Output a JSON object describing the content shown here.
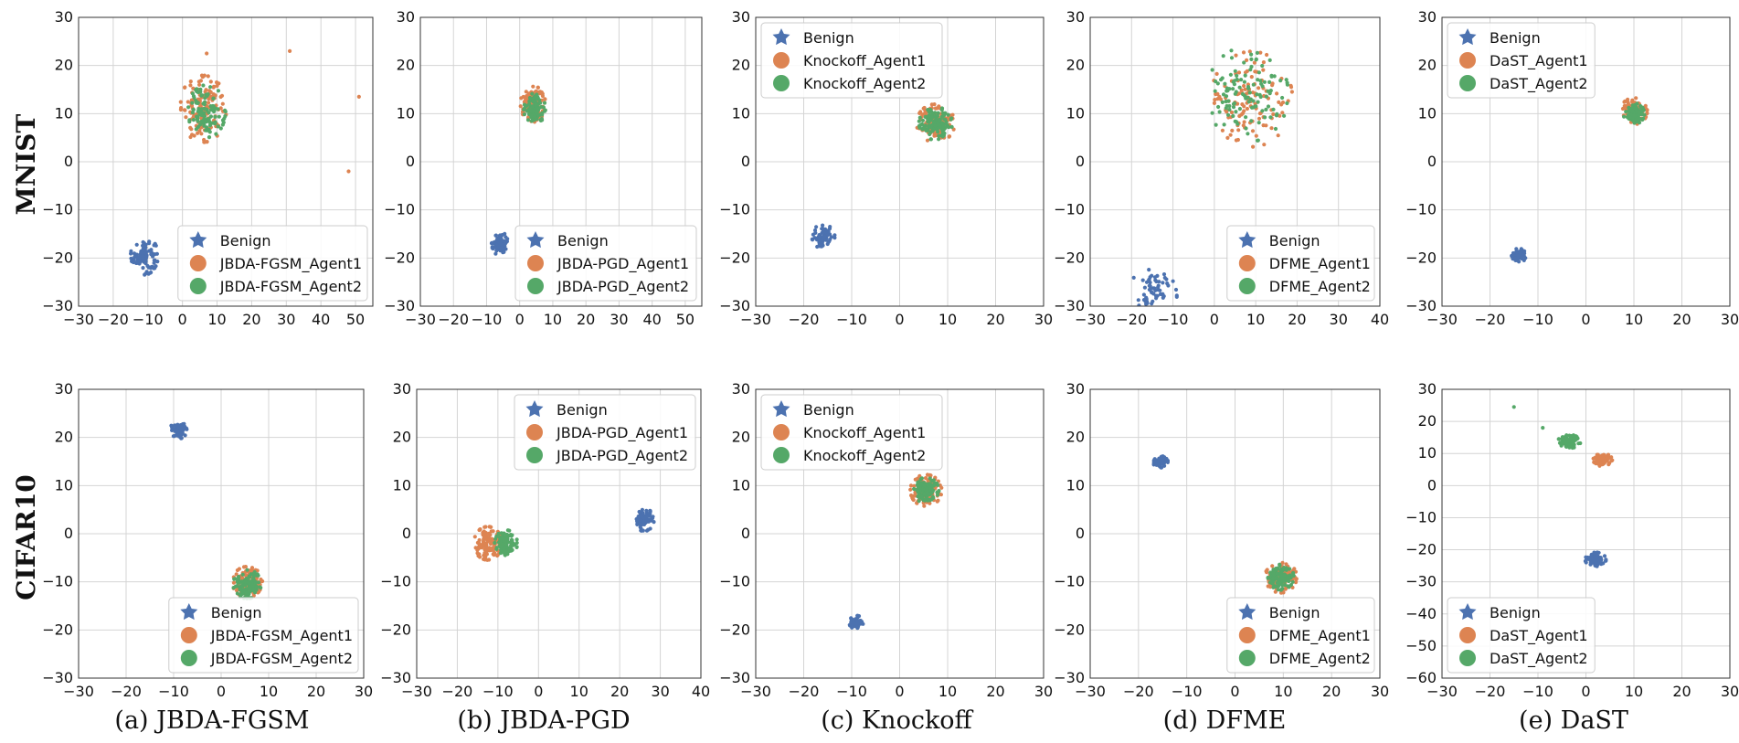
{
  "colors": {
    "benign": "#4c72b0",
    "agent1": "#dd8452",
    "agent2": "#55a868"
  },
  "row_labels": [
    "MNIST",
    "CIFAR10"
  ],
  "captions": [
    "(a) JBDA-FGSM",
    "(b) JBDA-PGD",
    "(c) Knockoff",
    "(d) DFME",
    "(e) DaST"
  ],
  "chart_data": [
    {
      "type": "scatter",
      "row": 0,
      "col": 0,
      "xlim": [
        -30,
        55
      ],
      "ylim": [
        -30,
        30
      ],
      "xticks": [
        -30,
        -20,
        -10,
        0,
        10,
        20,
        30,
        40,
        50
      ],
      "yticks": [
        -30,
        -20,
        -10,
        0,
        10,
        20,
        30
      ],
      "grid": true,
      "legend_position": "lower-right",
      "series": [
        {
          "name": "Benign",
          "cx": -11,
          "cy": -19.5,
          "spread": 4,
          "n": 100
        },
        {
          "name": "JBDA-FGSM_Agent1",
          "cx": 6,
          "cy": 11,
          "spread": 7,
          "n": 140
        },
        {
          "name": "JBDA-FGSM_Agent2",
          "cx": 7,
          "cy": 10.5,
          "spread": 5.5,
          "n": 110
        }
      ],
      "outliers": [
        {
          "series": 1,
          "x": 31,
          "y": 23
        },
        {
          "series": 1,
          "x": 51,
          "y": 13.5
        },
        {
          "series": 1,
          "x": 48,
          "y": -2
        },
        {
          "series": 1,
          "x": 7,
          "y": 22.5
        }
      ]
    },
    {
      "type": "scatter",
      "row": 0,
      "col": 1,
      "xlim": [
        -30,
        55
      ],
      "ylim": [
        -30,
        30
      ],
      "xticks": [
        -30,
        -20,
        -10,
        0,
        10,
        20,
        30,
        40,
        50
      ],
      "yticks": [
        -30,
        -20,
        -10,
        0,
        10,
        20,
        30
      ],
      "grid": true,
      "legend_position": "lower-right",
      "series": [
        {
          "name": "Benign",
          "cx": -6,
          "cy": -17,
          "spread": 2.5,
          "n": 70
        },
        {
          "name": "JBDA-PGD_Agent1",
          "cx": 4,
          "cy": 12,
          "spread": 3.8,
          "n": 120
        },
        {
          "name": "JBDA-PGD_Agent2",
          "cx": 4.5,
          "cy": 11,
          "spread": 3.3,
          "n": 110
        }
      ],
      "outliers": []
    },
    {
      "type": "scatter",
      "row": 0,
      "col": 2,
      "xlim": [
        -30,
        30
      ],
      "ylim": [
        -30,
        30
      ],
      "xticks": [
        -30,
        -20,
        -10,
        0,
        10,
        20,
        30
      ],
      "yticks": [
        -30,
        -20,
        -10,
        0,
        10,
        20,
        30
      ],
      "grid": true,
      "legend_position": "upper-left",
      "series": [
        {
          "name": "Benign",
          "cx": -16,
          "cy": -15.5,
          "spread": 2.5,
          "n": 80
        },
        {
          "name": "Knockoff_Agent1",
          "cx": 7.5,
          "cy": 8,
          "spread": 4,
          "n": 130
        },
        {
          "name": "Knockoff_Agent2",
          "cx": 7.5,
          "cy": 8,
          "spread": 3.5,
          "n": 120
        }
      ],
      "outliers": []
    },
    {
      "type": "scatter",
      "row": 0,
      "col": 3,
      "xlim": [
        -30,
        40
      ],
      "ylim": [
        -30,
        30
      ],
      "xticks": [
        -30,
        -20,
        -10,
        0,
        10,
        20,
        30,
        40
      ],
      "yticks": [
        -30,
        -20,
        -10,
        0,
        10,
        20,
        30
      ],
      "grid": true,
      "legend_position": "lower-right",
      "series": [
        {
          "name": "Benign",
          "cx": -15,
          "cy": -28,
          "spread": 6,
          "n": 70
        },
        {
          "name": "DFME_Agent1",
          "cx": 9,
          "cy": 13,
          "spread": 10,
          "n": 120
        },
        {
          "name": "DFME_Agent2",
          "cx": 8,
          "cy": 14,
          "spread": 10,
          "n": 120
        }
      ],
      "outliers": []
    },
    {
      "type": "scatter",
      "row": 0,
      "col": 4,
      "xlim": [
        -30,
        30
      ],
      "ylim": [
        -30,
        30
      ],
      "xticks": [
        -30,
        -20,
        -10,
        0,
        10,
        20,
        30
      ],
      "yticks": [
        -30,
        -20,
        -10,
        0,
        10,
        20,
        30
      ],
      "grid": true,
      "legend_position": "upper-left",
      "series": [
        {
          "name": "Benign",
          "cx": -14,
          "cy": -19.5,
          "spread": 1.5,
          "n": 60
        },
        {
          "name": "DaST_Agent1",
          "cx": 10,
          "cy": 10.5,
          "spread": 2.8,
          "n": 130
        },
        {
          "name": "DaST_Agent2",
          "cx": 10,
          "cy": 10,
          "spread": 2.2,
          "n": 90
        }
      ],
      "outliers": []
    },
    {
      "type": "scatter",
      "row": 1,
      "col": 0,
      "xlim": [
        -30,
        30
      ],
      "ylim": [
        -30,
        30
      ],
      "xticks": [
        -30,
        -20,
        -10,
        0,
        10,
        20,
        30
      ],
      "yticks": [
        -30,
        -20,
        -10,
        0,
        10,
        20,
        30
      ],
      "grid": true,
      "legend_position": "lower-right",
      "series": [
        {
          "name": "Benign",
          "cx": -9,
          "cy": 21.5,
          "spread": 1.8,
          "n": 70
        },
        {
          "name": "JBDA-FGSM_Agent1",
          "cx": 5.5,
          "cy": -10,
          "spread": 3.2,
          "n": 120
        },
        {
          "name": "JBDA-FGSM_Agent2",
          "cx": 5.5,
          "cy": -10.5,
          "spread": 3,
          "n": 120
        }
      ],
      "outliers": []
    },
    {
      "type": "scatter",
      "row": 1,
      "col": 1,
      "xlim": [
        -30,
        40
      ],
      "ylim": [
        -30,
        30
      ],
      "xticks": [
        -30,
        -20,
        -10,
        0,
        10,
        20,
        30,
        40
      ],
      "yticks": [
        -30,
        -20,
        -10,
        0,
        10,
        20,
        30
      ],
      "grid": true,
      "legend_position": "upper-right",
      "series": [
        {
          "name": "Benign",
          "cx": 26,
          "cy": 3,
          "spread": 2.5,
          "n": 80
        },
        {
          "name": "JBDA-PGD_Agent1",
          "cx": -12.5,
          "cy": -2,
          "spread": 3.5,
          "n": 120
        },
        {
          "name": "JBDA-PGD_Agent2",
          "cx": -8,
          "cy": -2,
          "spread": 2.8,
          "n": 100
        }
      ],
      "outliers": []
    },
    {
      "type": "scatter",
      "row": 1,
      "col": 2,
      "xlim": [
        -30,
        30
      ],
      "ylim": [
        -30,
        30
      ],
      "xticks": [
        -30,
        -20,
        -10,
        0,
        10,
        20,
        30
      ],
      "yticks": [
        -30,
        -20,
        -10,
        0,
        10,
        20,
        30
      ],
      "grid": true,
      "legend_position": "upper-left",
      "series": [
        {
          "name": "Benign",
          "cx": -9,
          "cy": -18.5,
          "spread": 1.5,
          "n": 60
        },
        {
          "name": "Knockoff_Agent1",
          "cx": 5.5,
          "cy": 9,
          "spread": 3.3,
          "n": 130
        },
        {
          "name": "Knockoff_Agent2",
          "cx": 5.5,
          "cy": 9,
          "spread": 2.7,
          "n": 110
        }
      ],
      "outliers": []
    },
    {
      "type": "scatter",
      "row": 1,
      "col": 3,
      "xlim": [
        -30,
        30
      ],
      "ylim": [
        -30,
        30
      ],
      "xticks": [
        -30,
        -20,
        -10,
        0,
        10,
        20,
        30
      ],
      "yticks": [
        -30,
        -20,
        -10,
        0,
        10,
        20,
        30
      ],
      "grid": true,
      "legend_position": "lower-right",
      "series": [
        {
          "name": "Benign",
          "cx": -15.5,
          "cy": 15,
          "spread": 1.6,
          "n": 60
        },
        {
          "name": "DFME_Agent1",
          "cx": 9.5,
          "cy": -9,
          "spread": 3.3,
          "n": 130
        },
        {
          "name": "DFME_Agent2",
          "cx": 9.5,
          "cy": -9,
          "spread": 2.7,
          "n": 110
        }
      ],
      "outliers": []
    },
    {
      "type": "scatter",
      "row": 1,
      "col": 4,
      "xlim": [
        -30,
        30
      ],
      "ylim": [
        -60,
        30
      ],
      "xticks": [
        -30,
        -20,
        -10,
        0,
        10,
        20,
        30
      ],
      "yticks": [
        -60,
        -50,
        -40,
        -30,
        -20,
        -10,
        0,
        10,
        20,
        30
      ],
      "grid": true,
      "legend_position": "lower-left",
      "series": [
        {
          "name": "Benign",
          "cx": 2,
          "cy": -23,
          "spread": 2.2,
          "n": 70
        },
        {
          "name": "DaST_Agent1",
          "cx": 3.5,
          "cy": 8,
          "spread": 2,
          "n": 80
        },
        {
          "name": "DaST_Agent2",
          "cx": -3.5,
          "cy": 13.5,
          "spread": 2.4,
          "n": 90
        }
      ],
      "outliers": [
        {
          "series": 2,
          "x": -15,
          "y": 24.5
        },
        {
          "series": 2,
          "x": -9,
          "y": 18
        }
      ]
    }
  ]
}
